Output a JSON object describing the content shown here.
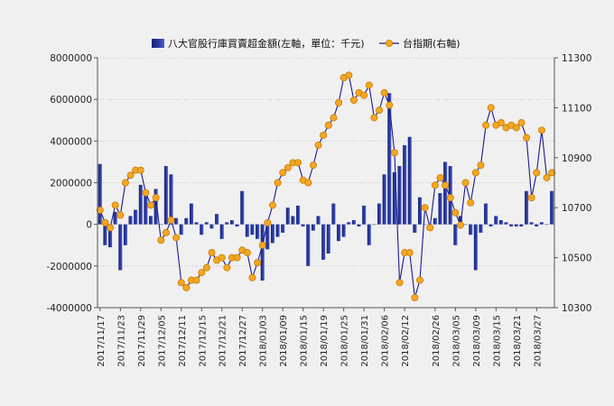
{
  "chart_data": {
    "type": "bar+line",
    "legend_position": "top",
    "grid": true,
    "categories": [
      "2017/11/17",
      "2017/11/20",
      "2017/11/21",
      "2017/11/22",
      "2017/11/23",
      "2017/11/24",
      "2017/11/27",
      "2017/11/28",
      "2017/11/29",
      "2017/11/30",
      "2017/12/01",
      "2017/12/04",
      "2017/12/05",
      "2017/12/06",
      "2017/12/07",
      "2017/12/08",
      "2017/12/11",
      "2017/12/12",
      "2017/12/13",
      "2017/12/14",
      "2017/12/15",
      "2017/12/18",
      "2017/12/19",
      "2017/12/20",
      "2017/12/21",
      "2017/12/22",
      "2017/12/25",
      "2017/12/26",
      "2017/12/27",
      "2017/12/28",
      "2017/12/29",
      "2018/01/02",
      "2018/01/03",
      "2018/01/04",
      "2018/01/05",
      "2018/01/08",
      "2018/01/09",
      "2018/01/10",
      "2018/01/11",
      "2018/01/12",
      "2018/01/15",
      "2018/01/16",
      "2018/01/17",
      "2018/01/18",
      "2018/01/19",
      "2018/01/22",
      "2018/01/23",
      "2018/01/24",
      "2018/01/25",
      "2018/01/26",
      "2018/01/29",
      "2018/01/30",
      "2018/01/31",
      "2018/02/01",
      "2018/02/02",
      "2018/02/05",
      "2018/02/06",
      "2018/02/07",
      "2018/02/08",
      "2018/02/09",
      "2018/02/12",
      "2018/02/13",
      "2018/02/14",
      "2018/02/21",
      "2018/02/22",
      "2018/02/23",
      "2018/02/26",
      "2018/02/27",
      "2018/03/01",
      "2018/03/02",
      "2018/03/05",
      "2018/03/06",
      "2018/03/07",
      "2018/03/08",
      "2018/03/09",
      "2018/03/12",
      "2018/03/13",
      "2018/03/14",
      "2018/03/15",
      "2018/03/16",
      "2018/03/19",
      "2018/03/20",
      "2018/03/21",
      "2018/03/22",
      "2018/03/23",
      "2018/03/26",
      "2018/03/27",
      "2018/03/28",
      "2018/03/29",
      "2018/03/30"
    ],
    "x_tick_labels": [
      "2017/11/17",
      "2017/11/23",
      "2017/11/29",
      "2017/12/05",
      "2017/12/11",
      "2017/12/15",
      "2017/12/21",
      "2017/12/27",
      "2018/01/03",
      "2018/01/09",
      "2018/01/15",
      "2018/01/19",
      "2018/01/25",
      "2018/01/31",
      "2018/02/06",
      "2018/02/12",
      "2018/02/26",
      "2018/03/05",
      "2018/03/09",
      "2018/03/15",
      "2018/03/21",
      "2018/03/27"
    ],
    "series": [
      {
        "name": "八大官股行庫買賣超金額(左軸，單位：千元)",
        "type": "bar",
        "axis": "left",
        "color": "#2a3a9e",
        "values": [
          2900000,
          -1000000,
          -1100000,
          600000,
          -2200000,
          -1000000,
          400000,
          700000,
          1900000,
          1500000,
          400000,
          1700000,
          0,
          2800000,
          2400000,
          300000,
          -500000,
          300000,
          1000000,
          100000,
          -500000,
          100000,
          -200000,
          500000,
          -700000,
          100000,
          200000,
          -100000,
          1600000,
          -600000,
          -500000,
          -700000,
          -2700000,
          -1200000,
          -900000,
          -600000,
          -400000,
          800000,
          400000,
          900000,
          -100000,
          -2000000,
          -300000,
          400000,
          -1700000,
          -1400000,
          1000000,
          -800000,
          -600000,
          100000,
          200000,
          -100000,
          900000,
          -1000000,
          0,
          1000000,
          2400000,
          6300000,
          2500000,
          2800000,
          3800000,
          4200000,
          -400000,
          1300000,
          0,
          -300000,
          300000,
          1500000,
          3000000,
          2800000,
          -1000000,
          400000,
          0,
          -500000,
          -2200000,
          -400000,
          1000000,
          -100000,
          400000,
          200000,
          100000,
          -100000,
          -100000,
          -100000,
          1600000,
          100000,
          -100000,
          100000,
          0,
          1600000
        ]
      },
      {
        "name": "台指期(右軸)",
        "type": "line",
        "axis": "right",
        "color": "#1a1a8c",
        "marker_color": "#f5a623",
        "values": [
          10690,
          10640,
          10620,
          10710,
          10670,
          10800,
          10830,
          10850,
          10850,
          10760,
          10710,
          10740,
          10570,
          10600,
          10650,
          10580,
          10400,
          10380,
          10410,
          10410,
          10440,
          10460,
          10520,
          10490,
          10500,
          10460,
          10500,
          10500,
          10530,
          10520,
          10420,
          10480,
          10550,
          10640,
          10710,
          10800,
          10840,
          10860,
          10880,
          10880,
          10810,
          10800,
          10870,
          10950,
          10990,
          11030,
          11060,
          11120,
          11220,
          11230,
          11130,
          11160,
          11150,
          11190,
          11060,
          11090,
          11160,
          11110,
          10920,
          10400,
          10520,
          10520,
          10340,
          10410,
          10700,
          10620,
          10790,
          10820,
          10790,
          10740,
          10680,
          10630,
          10800,
          10720,
          10840,
          10870,
          11030,
          11100,
          11030,
          11040,
          11020,
          11030,
          11020,
          11040,
          10980,
          10740,
          10840,
          11010,
          10820,
          10840
        ]
      }
    ],
    "y_left": {
      "min": -4000000,
      "max": 8000000,
      "ticks": [
        "8000000",
        "6000000",
        "4000000",
        "2000000",
        "0",
        "-2000000",
        "-4000000"
      ]
    },
    "y_right": {
      "min": 10300,
      "max": 11300,
      "ticks": [
        "11300",
        "11100",
        "10900",
        "10700",
        "10500",
        "10300"
      ]
    }
  }
}
